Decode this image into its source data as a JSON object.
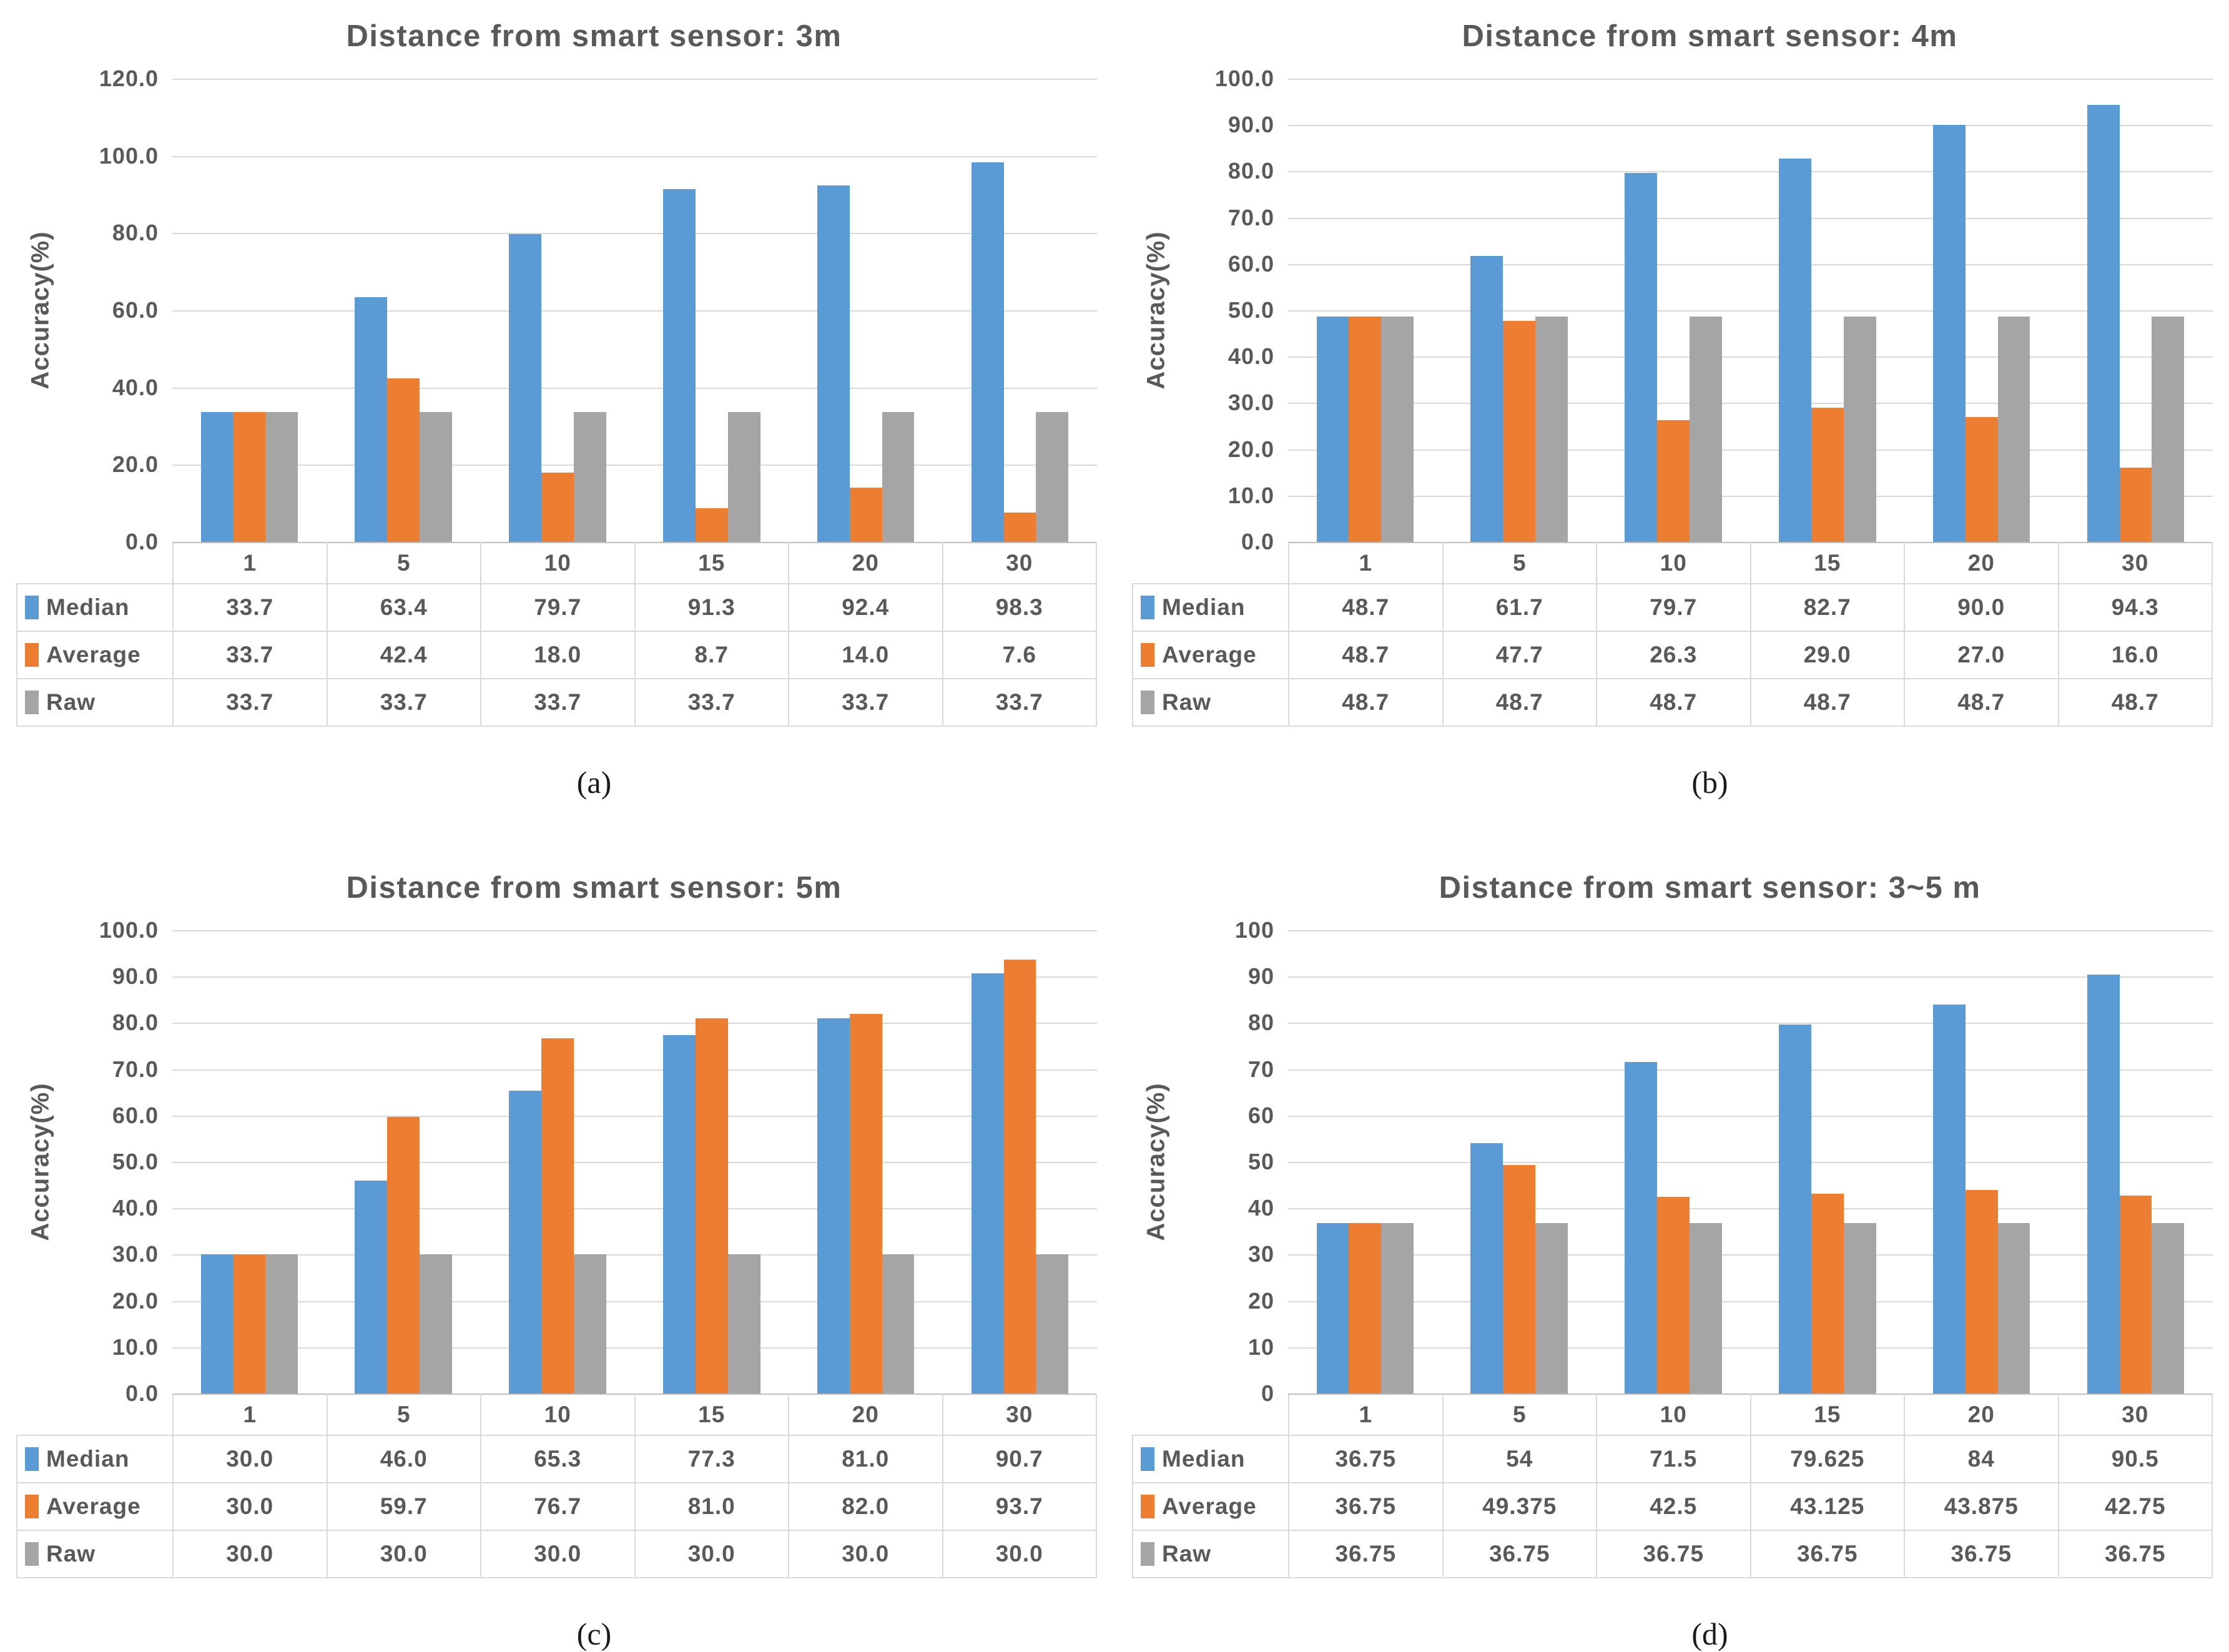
{
  "chart_data": [
    {
      "id": "a",
      "type": "bar",
      "title": "Distance from smart sensor: 3m",
      "caption": "(a)",
      "ylabel": "Accuracy(%)",
      "ylim": [
        0,
        120
      ],
      "ystep": 20,
      "tick_decimals": 1,
      "grid": true,
      "legend_position": "data-table-left",
      "categories": [
        "1",
        "5",
        "10",
        "15",
        "20",
        "30"
      ],
      "series": [
        {
          "name": "Median",
          "color": "#5B9BD5",
          "values": [
            "33.7",
            "63.4",
            "79.7",
            "91.3",
            "92.4",
            "98.3"
          ]
        },
        {
          "name": "Average",
          "color": "#ED7D31",
          "values": [
            "33.7",
            "42.4",
            "18.0",
            "8.7",
            "14.0",
            "7.6"
          ]
        },
        {
          "name": "Raw",
          "color": "#A5A5A5",
          "values": [
            "33.7",
            "33.7",
            "33.7",
            "33.7",
            "33.7",
            "33.7"
          ]
        }
      ]
    },
    {
      "id": "b",
      "type": "bar",
      "title": "Distance from smart sensor: 4m",
      "caption": "(b)",
      "ylabel": "Accuracy(%)",
      "ylim": [
        0,
        100
      ],
      "ystep": 10,
      "tick_decimals": 1,
      "grid": true,
      "legend_position": "data-table-left",
      "categories": [
        "1",
        "5",
        "10",
        "15",
        "20",
        "30"
      ],
      "series": [
        {
          "name": "Median",
          "color": "#5B9BD5",
          "values": [
            "48.7",
            "61.7",
            "79.7",
            "82.7",
            "90.0",
            "94.3"
          ]
        },
        {
          "name": "Average",
          "color": "#ED7D31",
          "values": [
            "48.7",
            "47.7",
            "26.3",
            "29.0",
            "27.0",
            "16.0"
          ]
        },
        {
          "name": "Raw",
          "color": "#A5A5A5",
          "values": [
            "48.7",
            "48.7",
            "48.7",
            "48.7",
            "48.7",
            "48.7"
          ]
        }
      ]
    },
    {
      "id": "c",
      "type": "bar",
      "title": "Distance from smart sensor: 5m",
      "caption": "(c)",
      "ylabel": "Accuracy(%)",
      "ylim": [
        0,
        100
      ],
      "ystep": 10,
      "tick_decimals": 1,
      "grid": true,
      "legend_position": "data-table-left",
      "categories": [
        "1",
        "5",
        "10",
        "15",
        "20",
        "30"
      ],
      "series": [
        {
          "name": "Median",
          "color": "#5B9BD5",
          "values": [
            "30.0",
            "46.0",
            "65.3",
            "77.3",
            "81.0",
            "90.7"
          ]
        },
        {
          "name": "Average",
          "color": "#ED7D31",
          "values": [
            "30.0",
            "59.7",
            "76.7",
            "81.0",
            "82.0",
            "93.7"
          ]
        },
        {
          "name": "Raw",
          "color": "#A5A5A5",
          "values": [
            "30.0",
            "30.0",
            "30.0",
            "30.0",
            "30.0",
            "30.0"
          ]
        }
      ]
    },
    {
      "id": "d",
      "type": "bar",
      "title": "Distance from smart sensor: 3~5 m",
      "caption": "(d)",
      "ylabel": "Accuracy(%)",
      "ylim": [
        0,
        100
      ],
      "ystep": 10,
      "tick_decimals": 0,
      "grid": true,
      "legend_position": "data-table-left",
      "categories": [
        "1",
        "5",
        "10",
        "15",
        "20",
        "30"
      ],
      "series": [
        {
          "name": "Median",
          "color": "#5B9BD5",
          "values": [
            "36.75",
            "54",
            "71.5",
            "79.625",
            "84",
            "90.5"
          ]
        },
        {
          "name": "Average",
          "color": "#ED7D31",
          "values": [
            "36.75",
            "49.375",
            "42.5",
            "43.125",
            "43.875",
            "42.75"
          ]
        },
        {
          "name": "Raw",
          "color": "#A5A5A5",
          "values": [
            "36.75",
            "36.75",
            "36.75",
            "36.75",
            "36.75",
            "36.75"
          ]
        }
      ]
    }
  ],
  "style_colors": {
    "series_blue": "#5B9BD5",
    "series_orange": "#ED7D31",
    "series_gray": "#A5A5A5",
    "text_gray": "#595959",
    "gridline": "#D9D9D9",
    "axis_line": "#BFBFBF"
  }
}
